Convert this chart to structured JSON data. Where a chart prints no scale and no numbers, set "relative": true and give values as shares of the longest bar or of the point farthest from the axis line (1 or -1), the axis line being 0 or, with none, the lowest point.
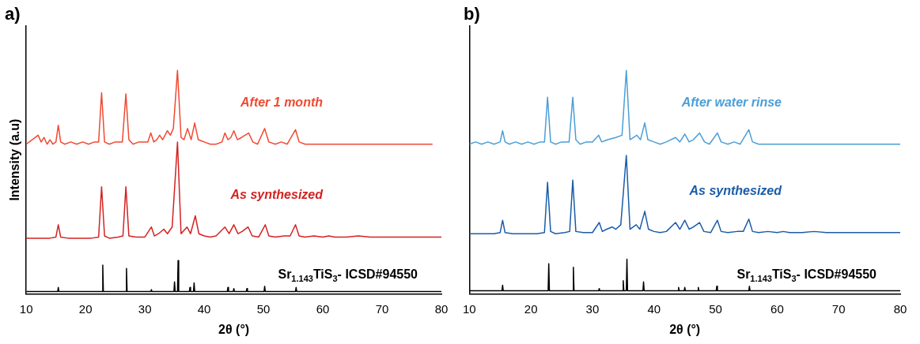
{
  "chart_data": [
    {
      "type": "line",
      "title": "a)",
      "xlabel": "2θ (°)",
      "ylabel": "Intensity (a.u)",
      "relative": true,
      "xlim": [
        10,
        80
      ],
      "xticks": [
        10,
        20,
        30,
        40,
        50,
        60,
        70,
        80
      ],
      "grid": false,
      "legend": false,
      "marker": "none",
      "line_style": "solid",
      "series": [
        {
          "name": "After 1 month",
          "color": "#f04a32",
          "x": [
            10,
            11,
            12,
            12.5,
            13,
            13.5,
            14,
            14.5,
            15,
            15.4,
            15.8,
            16.5,
            17.5,
            18.5,
            19.5,
            20.5,
            21.5,
            22.2,
            22.7,
            23.2,
            24,
            25,
            26.2,
            26.8,
            27.3,
            28,
            29,
            30,
            30.5,
            31,
            31.5,
            32,
            32.5,
            33,
            33.8,
            34.3,
            34.8,
            35.5,
            36.1,
            36.6,
            37.2,
            37.8,
            38.4,
            39,
            40,
            41,
            42,
            43,
            43.5,
            44,
            44.5,
            45,
            45.6,
            46.3,
            47.5,
            48.2,
            49,
            50.2,
            50.9,
            52,
            53,
            54,
            55.4,
            56,
            57,
            58,
            60,
            62,
            64,
            66,
            68,
            70,
            72,
            74,
            76,
            78.5
          ],
          "values": [
            0.67,
            0.69,
            0.71,
            0.68,
            0.7,
            0.67,
            0.69,
            0.67,
            0.68,
            0.755,
            0.68,
            0.67,
            0.68,
            0.67,
            0.68,
            0.67,
            0.68,
            0.68,
            0.9,
            0.68,
            0.67,
            0.68,
            0.68,
            0.895,
            0.69,
            0.67,
            0.68,
            0.68,
            0.68,
            0.72,
            0.68,
            0.69,
            0.71,
            0.69,
            0.73,
            0.71,
            0.74,
            1.0,
            0.7,
            0.69,
            0.74,
            0.69,
            0.765,
            0.69,
            0.68,
            0.67,
            0.67,
            0.68,
            0.72,
            0.69,
            0.7,
            0.73,
            0.69,
            0.7,
            0.72,
            0.68,
            0.67,
            0.74,
            0.68,
            0.67,
            0.68,
            0.67,
            0.735,
            0.68,
            0.67,
            0.67,
            0.67,
            0.67,
            0.67,
            0.67,
            0.67,
            0.67,
            0.67,
            0.67,
            0.67,
            0.67
          ]
        },
        {
          "name": "As synthesized",
          "color": "#d42222",
          "x": [
            10,
            12,
            14,
            15,
            15.4,
            15.8,
            17,
            19,
            21,
            22.2,
            22.7,
            23.2,
            24,
            25.5,
            26.3,
            26.8,
            27.3,
            28.5,
            30,
            31.1,
            31.6,
            32.3,
            33.2,
            33.8,
            34.6,
            35.5,
            36.1,
            37.1,
            37.7,
            38.5,
            39.1,
            40,
            41,
            42,
            43.5,
            44.2,
            45,
            45.7,
            46.4,
            47.4,
            48.1,
            49.2,
            50.3,
            50.9,
            52,
            53.5,
            54.5,
            55.4,
            56,
            57,
            58.5,
            60,
            61,
            62,
            64,
            66,
            68,
            70,
            72,
            74,
            76,
            78,
            80
          ],
          "values": [
            0.25,
            0.25,
            0.25,
            0.255,
            0.31,
            0.255,
            0.25,
            0.25,
            0.25,
            0.255,
            0.48,
            0.26,
            0.25,
            0.255,
            0.26,
            0.48,
            0.26,
            0.255,
            0.255,
            0.3,
            0.26,
            0.27,
            0.29,
            0.27,
            0.3,
            0.68,
            0.27,
            0.3,
            0.27,
            0.35,
            0.27,
            0.26,
            0.255,
            0.26,
            0.3,
            0.27,
            0.31,
            0.27,
            0.28,
            0.3,
            0.26,
            0.255,
            0.31,
            0.26,
            0.255,
            0.26,
            0.26,
            0.31,
            0.26,
            0.255,
            0.26,
            0.255,
            0.26,
            0.255,
            0.255,
            0.26,
            0.255,
            0.255,
            0.255,
            0.255,
            0.255,
            0.255,
            0.255
          ]
        },
        {
          "name": "Sr$_{1.143}$TiS$_{3}$- ICSD#94550",
          "color": "#000000",
          "x": [
            10,
            15.3,
            15.4,
            15.5,
            22.8,
            22.9,
            23.0,
            26.8,
            26.9,
            27.0,
            31.0,
            31.1,
            31.2,
            34.9,
            35.0,
            35.1,
            35.5,
            35.6,
            35.7,
            37.5,
            37.6,
            37.7,
            38.2,
            38.3,
            38.4,
            43.9,
            44.0,
            44.1,
            44.9,
            45.0,
            45.1,
            47.1,
            47.2,
            47.3,
            50.1,
            50.2,
            50.3,
            55.4,
            55.5,
            55.6,
            80
          ],
          "values": [
            0.012,
            0.012,
            0.03,
            0.012,
            0.012,
            0.13,
            0.012,
            0.012,
            0.115,
            0.012,
            0.012,
            0.02,
            0.012,
            0.012,
            0.055,
            0.012,
            0.012,
            0.15,
            0.012,
            0.012,
            0.03,
            0.012,
            0.012,
            0.05,
            0.012,
            0.012,
            0.03,
            0.012,
            0.012,
            0.025,
            0.012,
            0.012,
            0.025,
            0.012,
            0.012,
            0.035,
            0.012,
            0.012,
            0.03,
            0.012,
            0.012
          ]
        }
      ]
    },
    {
      "type": "line",
      "title": "b)",
      "xlabel": "2θ (°)",
      "relative": true,
      "xlim": [
        10,
        80
      ],
      "xticks": [
        10,
        20,
        30,
        40,
        50,
        60,
        70,
        80
      ],
      "grid": false,
      "legend": false,
      "marker": "none",
      "line_style": "solid",
      "series": [
        {
          "name": "After water rinse",
          "color": "#4a9fd8",
          "x": [
            10,
            11,
            12,
            13,
            14,
            15,
            15.4,
            15.8,
            16.5,
            17.5,
            18.5,
            19.5,
            20.5,
            21.5,
            22.2,
            22.7,
            23.2,
            24,
            25,
            26.2,
            26.8,
            27.3,
            28,
            29,
            30,
            31,
            31.5,
            32.5,
            33.8,
            34.8,
            35.5,
            36.1,
            37.2,
            37.8,
            38.5,
            39,
            40,
            41,
            42,
            43.5,
            44.2,
            45,
            45.7,
            46.4,
            47.4,
            48.2,
            49,
            50.3,
            50.9,
            52,
            53,
            54,
            55.4,
            56,
            57,
            58,
            60,
            62,
            64,
            66,
            68,
            70,
            72,
            74,
            76,
            78,
            80
          ],
          "values": [
            0.67,
            0.68,
            0.67,
            0.68,
            0.67,
            0.68,
            0.73,
            0.68,
            0.67,
            0.68,
            0.67,
            0.68,
            0.67,
            0.68,
            0.68,
            0.88,
            0.68,
            0.67,
            0.68,
            0.68,
            0.88,
            0.69,
            0.67,
            0.68,
            0.68,
            0.71,
            0.68,
            0.69,
            0.7,
            0.71,
            1.0,
            0.69,
            0.71,
            0.69,
            0.765,
            0.69,
            0.68,
            0.67,
            0.68,
            0.7,
            0.68,
            0.715,
            0.68,
            0.69,
            0.72,
            0.68,
            0.67,
            0.72,
            0.68,
            0.67,
            0.68,
            0.67,
            0.735,
            0.68,
            0.67,
            0.67,
            0.67,
            0.67,
            0.67,
            0.67,
            0.67,
            0.67,
            0.67,
            0.67,
            0.67,
            0.67,
            0.67
          ]
        },
        {
          "name": "As synthesized",
          "color": "#1a5ca8",
          "x": [
            10,
            12,
            14,
            15,
            15.4,
            15.8,
            17,
            19,
            21,
            22.2,
            22.7,
            23.2,
            24,
            25.5,
            26.3,
            26.8,
            27.3,
            28.5,
            30,
            31.1,
            31.6,
            32.3,
            33.2,
            33.8,
            34.6,
            35.5,
            36.1,
            37.1,
            37.7,
            38.5,
            39.1,
            40,
            41,
            42,
            43.5,
            44.2,
            45,
            45.7,
            46.4,
            47.4,
            48.1,
            49.2,
            50.3,
            50.9,
            52,
            53.5,
            54.5,
            55.4,
            56,
            57,
            58.5,
            60,
            61,
            62,
            64,
            66,
            68,
            70,
            72,
            74,
            76,
            78,
            80
          ],
          "values": [
            0.27,
            0.27,
            0.27,
            0.275,
            0.33,
            0.275,
            0.27,
            0.27,
            0.27,
            0.275,
            0.5,
            0.28,
            0.27,
            0.275,
            0.28,
            0.51,
            0.28,
            0.275,
            0.275,
            0.32,
            0.28,
            0.29,
            0.3,
            0.29,
            0.31,
            0.62,
            0.29,
            0.31,
            0.29,
            0.37,
            0.29,
            0.28,
            0.275,
            0.28,
            0.32,
            0.29,
            0.33,
            0.29,
            0.3,
            0.32,
            0.28,
            0.275,
            0.33,
            0.28,
            0.275,
            0.28,
            0.28,
            0.335,
            0.28,
            0.275,
            0.28,
            0.275,
            0.28,
            0.275,
            0.275,
            0.28,
            0.275,
            0.275,
            0.275,
            0.275,
            0.275,
            0.275,
            0.275
          ]
        },
        {
          "name": "Sr$_{1.143}$TiS$_{3}$- ICSD#94550",
          "color": "#000000",
          "x": [
            10,
            15.3,
            15.4,
            15.5,
            22.8,
            22.9,
            23.0,
            26.8,
            26.9,
            27.0,
            31.0,
            31.1,
            31.2,
            34.9,
            35.0,
            35.1,
            35.5,
            35.6,
            35.7,
            38.2,
            38.3,
            38.4,
            43.9,
            44.0,
            44.1,
            44.9,
            45.0,
            45.1,
            47.1,
            47.2,
            47.3,
            50.1,
            50.2,
            50.3,
            55.4,
            55.5,
            55.6,
            80
          ],
          "values": [
            0.015,
            0.015,
            0.04,
            0.015,
            0.015,
            0.136,
            0.015,
            0.015,
            0.12,
            0.015,
            0.015,
            0.025,
            0.015,
            0.015,
            0.06,
            0.015,
            0.015,
            0.156,
            0.015,
            0.015,
            0.055,
            0.015,
            0.015,
            0.03,
            0.015,
            0.015,
            0.03,
            0.015,
            0.015,
            0.03,
            0.015,
            0.015,
            0.035,
            0.015,
            0.015,
            0.035,
            0.015,
            0.015
          ]
        }
      ]
    }
  ]
}
